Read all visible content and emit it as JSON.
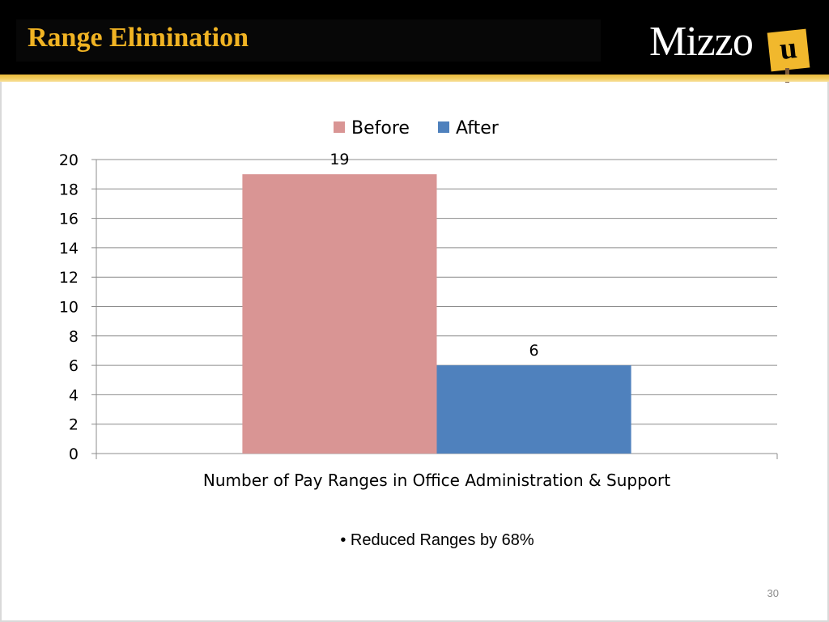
{
  "slide": {
    "title": "Range Elimination",
    "bullet": "• Reduced Ranges by 68%",
    "page_number": "30",
    "accent_color": "#f0b323"
  },
  "logo": {
    "text": "Mizzo",
    "u_text": "u"
  },
  "chart_data": {
    "type": "bar",
    "categories": [
      "Number of Pay Ranges in Office Administration & Support"
    ],
    "series": [
      {
        "name": "Before",
        "values": [
          19
        ],
        "color": "#d99594"
      },
      {
        "name": "After",
        "values": [
          6
        ],
        "color": "#4f81bd"
      }
    ],
    "data_labels": [
      "19",
      "6"
    ],
    "ylim": [
      0,
      20
    ],
    "yticks": [
      0,
      2,
      4,
      6,
      8,
      10,
      12,
      14,
      16,
      18,
      20
    ],
    "grid": true,
    "legend": "top-center"
  }
}
